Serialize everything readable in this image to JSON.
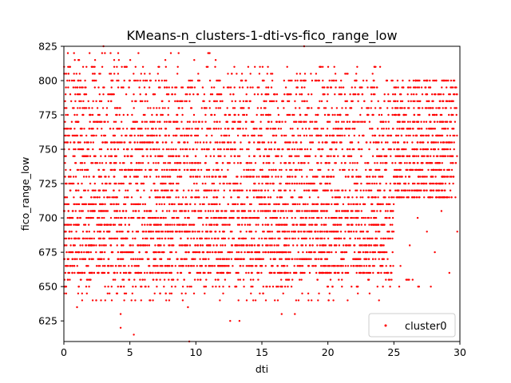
{
  "chart_data": {
    "type": "scatter",
    "title": "KMeans-n_clusters-1-dti-vs-fico_range_low",
    "xlabel": "dti",
    "ylabel": "fico_range_low",
    "xlim": [
      0,
      30
    ],
    "ylim": [
      610,
      825
    ],
    "xticks": [
      0,
      5,
      10,
      15,
      20,
      25,
      30
    ],
    "yticks": [
      625,
      650,
      675,
      700,
      725,
      750,
      775,
      800,
      825
    ],
    "grid": false,
    "legend_position": "lower-right",
    "series": [
      {
        "name": "cluster0",
        "color": "#ff0000",
        "fico_levels": [
          615,
          620,
          625,
          630,
          635,
          640,
          645,
          650,
          655,
          660,
          665,
          670,
          675,
          680,
          685,
          690,
          695,
          700,
          705,
          710,
          715,
          720,
          725,
          730,
          735,
          740,
          745,
          750,
          755,
          760,
          765,
          770,
          775,
          780,
          785,
          790,
          795,
          800,
          805,
          810,
          815,
          820
        ],
        "dense_dti_range": [
          0,
          25
        ],
        "dense_fico_range": [
          660,
          710
        ],
        "points": [
          {
            "x": 25.5,
            "y": 665
          },
          {
            "x": 26.2,
            "y": 680
          },
          {
            "x": 26.8,
            "y": 700
          },
          {
            "x": 27.5,
            "y": 690
          },
          {
            "x": 28.1,
            "y": 675
          },
          {
            "x": 28.6,
            "y": 705
          },
          {
            "x": 29.2,
            "y": 660
          },
          {
            "x": 29.8,
            "y": 690
          },
          {
            "x": 25.9,
            "y": 720
          },
          {
            "x": 27.0,
            "y": 735
          },
          {
            "x": 28.3,
            "y": 760
          },
          {
            "x": 29.5,
            "y": 785
          },
          {
            "x": 26.5,
            "y": 795
          },
          {
            "x": 28.9,
            "y": 780
          },
          {
            "x": 27.8,
            "y": 650
          },
          {
            "x": 26.0,
            "y": 655
          },
          {
            "x": 4.3,
            "y": 630
          },
          {
            "x": 4.3,
            "y": 620
          },
          {
            "x": 5.3,
            "y": 615
          },
          {
            "x": 9.5,
            "y": 610
          },
          {
            "x": 12.6,
            "y": 625
          },
          {
            "x": 13.3,
            "y": 625
          },
          {
            "x": 16.5,
            "y": 630
          },
          {
            "x": 17.5,
            "y": 630
          },
          {
            "x": 1.0,
            "y": 635
          },
          {
            "x": 9.4,
            "y": 635
          },
          {
            "x": 18.2,
            "y": 825
          },
          {
            "x": 3.0,
            "y": 825
          },
          {
            "x": 0.3,
            "y": 820
          },
          {
            "x": 2.9,
            "y": 820
          },
          {
            "x": 11.0,
            "y": 820
          }
        ]
      }
    ]
  }
}
